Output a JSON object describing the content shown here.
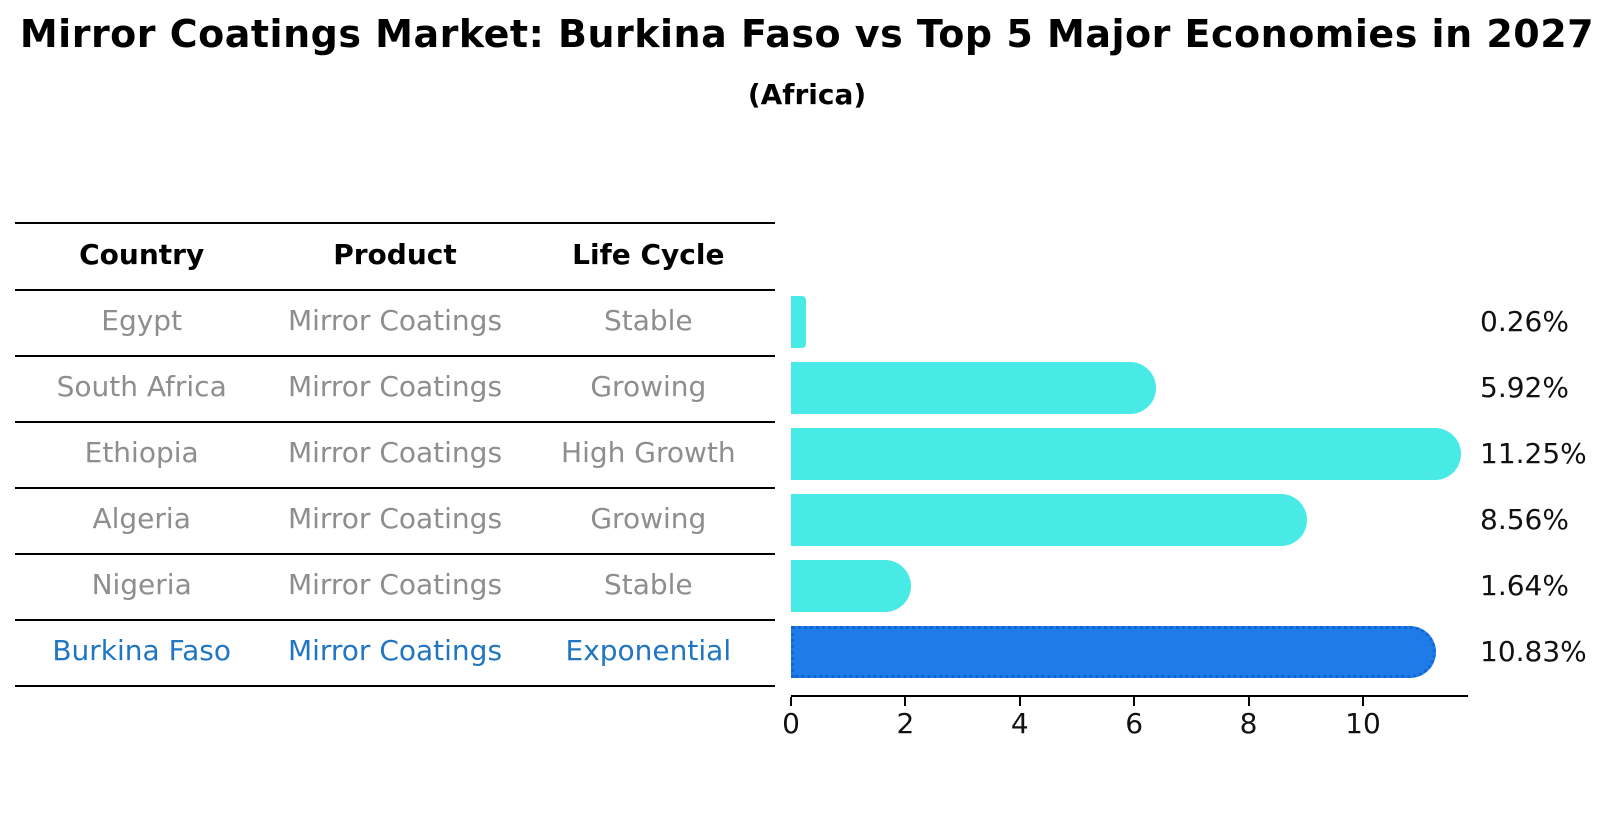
{
  "header": {
    "title": "Mirror Coatings Market: Burkina Faso vs Top 5 Major Economies in 2027",
    "subtitle": "(Africa)"
  },
  "table": {
    "headers": [
      "Country",
      "Product",
      "Life Cycle"
    ],
    "rows": [
      {
        "country": "Egypt",
        "product": "Mirror Coatings",
        "life_cycle": "Stable"
      },
      {
        "country": "South Africa",
        "product": "Mirror Coatings",
        "life_cycle": "Growing"
      },
      {
        "country": "Ethiopia",
        "product": "Mirror Coatings",
        "life_cycle": "High Growth"
      },
      {
        "country": "Algeria",
        "product": "Mirror Coatings",
        "life_cycle": "Growing"
      },
      {
        "country": "Nigeria",
        "product": "Mirror Coatings",
        "life_cycle": "Stable"
      },
      {
        "country": "Burkina Faso",
        "product": "Mirror Coatings",
        "life_cycle": "Exponential"
      }
    ],
    "text_color": "#8e8e8e",
    "header_color": "#000000",
    "highlight_row_index": 5,
    "highlight_text_color": "#2176c4"
  },
  "chart_data": {
    "type": "bar",
    "orientation": "horizontal",
    "title": "Mirror Coatings Market: Burkina Faso vs Top 5 Major Economies in 2027",
    "subtitle": "(Africa)",
    "categories": [
      "Egypt",
      "South Africa",
      "Ethiopia",
      "Algeria",
      "Nigeria",
      "Burkina Faso"
    ],
    "values": [
      0.26,
      5.92,
      11.25,
      8.56,
      1.64,
      10.83
    ],
    "value_labels": [
      "0.26%",
      "5.92%",
      "11.25%",
      "8.56%",
      "1.64%",
      "10.83%"
    ],
    "xlabel": "",
    "ylabel": "",
    "xticks": [
      0,
      2,
      4,
      6,
      8,
      10
    ],
    "xlim": [
      0,
      11.8
    ],
    "grid": false,
    "legend": "none",
    "bar_color": "#47eae5",
    "highlight_index": 5,
    "highlight_color": "#1e7be8",
    "highlight_border_style": "dotted",
    "value_label_position": "right-outside"
  }
}
